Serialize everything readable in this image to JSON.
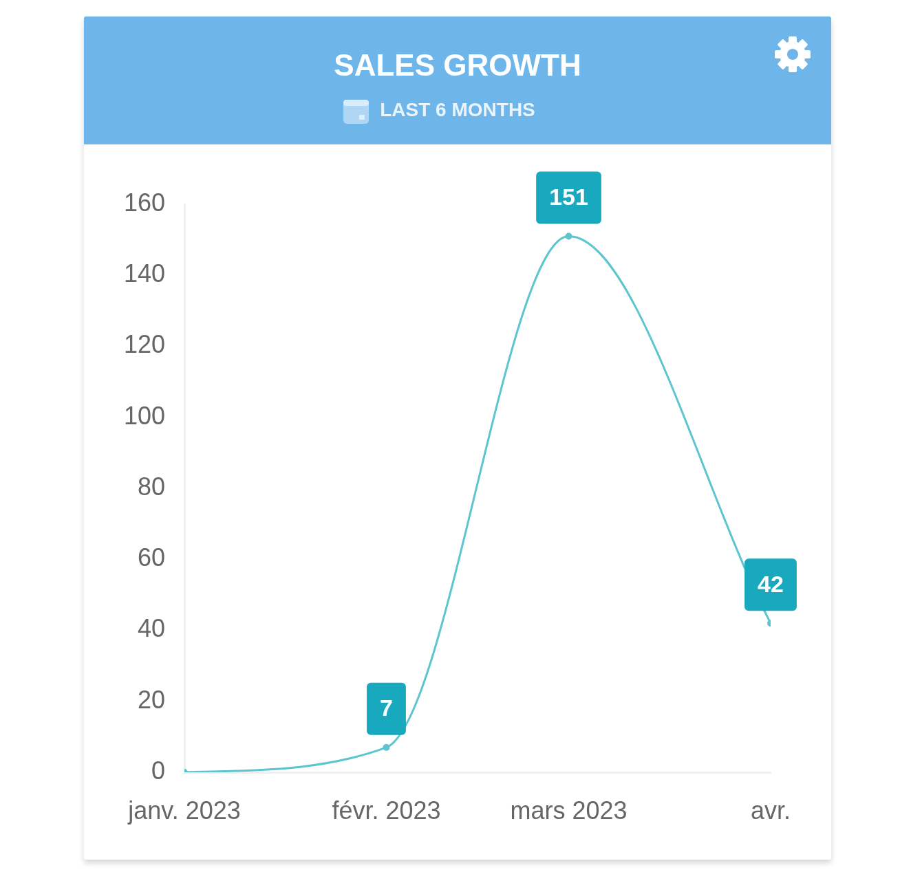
{
  "chart_data": {
    "type": "line",
    "title": "SALES GROWTH",
    "subtitle": "LAST 6 MONTHS",
    "x": [
      "2023-01",
      "2023-02",
      "2023-03",
      "2023-04"
    ],
    "values": [
      0,
      7,
      151,
      42
    ],
    "color": "#5cc5cd",
    "value_labels": [
      null,
      "7",
      "151",
      "42"
    ],
    "xlim": [
      "2023-01",
      "2023-04"
    ],
    "xticks": [
      {
        "value": "2023-01",
        "label": "janv. 2023"
      },
      {
        "value": "2023-02",
        "label": "févr. 2023"
      },
      {
        "value": "2023-03",
        "label": "mars 2023"
      },
      {
        "value": "2023-04",
        "label": "avr."
      }
    ],
    "ylim": [
      0,
      160
    ],
    "yticks": [
      0,
      20,
      40,
      60,
      80,
      100,
      120,
      140,
      160
    ],
    "marker": "circle",
    "line_style": "solid"
  }
}
